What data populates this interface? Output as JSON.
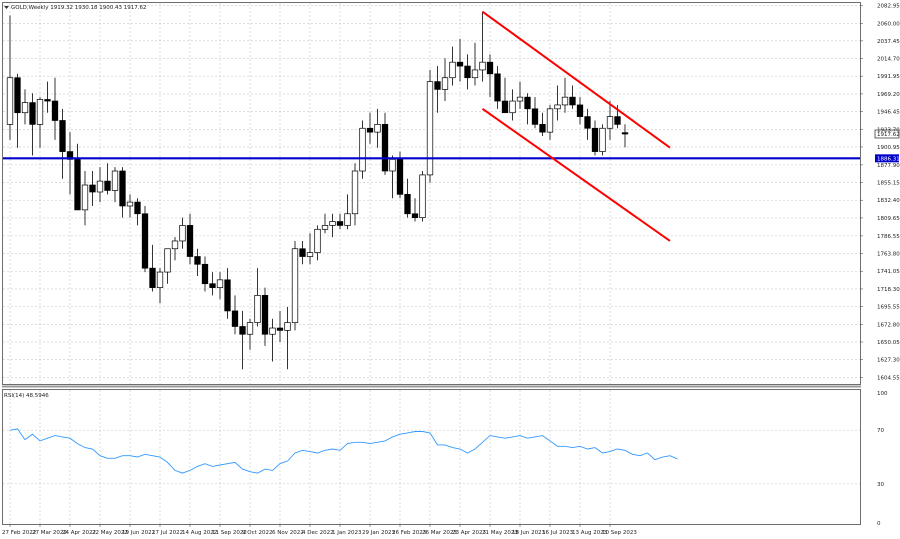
{
  "header": {
    "symbol_line": "GOLD,Weekly  1919.32 1930.18 1900.43 1917.62",
    "rsi_label": "RSI(14) 48.5946"
  },
  "chart_data": [
    {
      "type": "candlestick",
      "symbol": "GOLD",
      "timeframe": "Weekly",
      "ohlc_current": {
        "open": 1919.32,
        "high": 1930.18,
        "low": 1900.43,
        "close": 1917.62
      },
      "ylim": [
        1596,
        2090
      ],
      "y_ticks": [
        "2082.95",
        "2060.00",
        "2037.45",
        "2014.70",
        "1991.95",
        "1969.20",
        "1946.45",
        "1923.70",
        "1900.95",
        "1877.90",
        "1855.15",
        "1832.40",
        "1809.65",
        "1786.55",
        "1763.80",
        "1741.05",
        "1718.30",
        "1695.55",
        "1672.80",
        "1650.05",
        "1627.30",
        "1604.55"
      ],
      "x_labels": [
        "27 Feb 2022",
        "27 Mar 2022",
        "24 Apr 2022",
        "22 May 2022",
        "19 Jun 2022",
        "17 Jul 2022",
        "14 Aug 2022",
        "11 Sep 2022",
        "9 Oct 2022",
        "6 Nov 2022",
        "4 Dec 2022",
        "1 Jan 2023",
        "29 Jan 2023",
        "26 Feb 2023",
        "26 Mar 2023",
        "23 Apr 2023",
        "21 May 2023",
        "18 Jun 2023",
        "16 Jul 2023",
        "13 Aug 2023",
        "10 Sep 2023"
      ],
      "candles": [
        [
          1930,
          2070,
          1910,
          1990
        ],
        [
          1990,
          1995,
          1900,
          1945
        ],
        [
          1945,
          1975,
          1930,
          1958
        ],
        [
          1958,
          1970,
          1890,
          1930
        ],
        [
          1930,
          1965,
          1900,
          1962
        ],
        [
          1962,
          1985,
          1945,
          1960
        ],
        [
          1960,
          1990,
          1910,
          1935
        ],
        [
          1935,
          1950,
          1860,
          1895
        ],
        [
          1895,
          1920,
          1840,
          1885
        ],
        [
          1885,
          1905,
          1820,
          1820
        ],
        [
          1820,
          1870,
          1800,
          1852
        ],
        [
          1852,
          1870,
          1825,
          1843
        ],
        [
          1843,
          1875,
          1830,
          1857
        ],
        [
          1857,
          1880,
          1840,
          1845
        ],
        [
          1845,
          1875,
          1830,
          1870
        ],
        [
          1870,
          1875,
          1810,
          1825
        ],
        [
          1825,
          1840,
          1810,
          1830
        ],
        [
          1830,
          1835,
          1800,
          1815
        ],
        [
          1815,
          1825,
          1740,
          1745
        ],
        [
          1745,
          1775,
          1715,
          1720
        ],
        [
          1720,
          1745,
          1700,
          1740
        ],
        [
          1740,
          1770,
          1725,
          1770
        ],
        [
          1770,
          1785,
          1755,
          1780
        ],
        [
          1780,
          1810,
          1770,
          1800
        ],
        [
          1800,
          1815,
          1750,
          1760
        ],
        [
          1760,
          1770,
          1735,
          1750
        ],
        [
          1750,
          1760,
          1715,
          1725
        ],
        [
          1725,
          1740,
          1710,
          1720
        ],
        [
          1720,
          1740,
          1705,
          1730
        ],
        [
          1730,
          1745,
          1680,
          1690
        ],
        [
          1690,
          1710,
          1660,
          1670
        ],
        [
          1670,
          1690,
          1615,
          1660
        ],
        [
          1660,
          1680,
          1640,
          1675
        ],
        [
          1675,
          1745,
          1670,
          1710
        ],
        [
          1710,
          1720,
          1645,
          1660
        ],
        [
          1660,
          1680,
          1625,
          1668
        ],
        [
          1668,
          1690,
          1650,
          1665
        ],
        [
          1665,
          1695,
          1615,
          1675
        ],
        [
          1675,
          1780,
          1665,
          1770
        ],
        [
          1770,
          1780,
          1750,
          1760
        ],
        [
          1760,
          1790,
          1750,
          1765
        ],
        [
          1765,
          1800,
          1755,
          1795
        ],
        [
          1795,
          1815,
          1790,
          1800
        ],
        [
          1800,
          1815,
          1785,
          1805
        ],
        [
          1805,
          1815,
          1795,
          1800
        ],
        [
          1800,
          1840,
          1795,
          1815
        ],
        [
          1815,
          1880,
          1800,
          1870
        ],
        [
          1870,
          1935,
          1860,
          1925
        ],
        [
          1925,
          1945,
          1905,
          1920
        ],
        [
          1920,
          1950,
          1900,
          1930
        ],
        [
          1930,
          1945,
          1865,
          1870
        ],
        [
          1870,
          1890,
          1835,
          1885
        ],
        [
          1885,
          1895,
          1835,
          1840
        ],
        [
          1840,
          1860,
          1810,
          1815
        ],
        [
          1815,
          1835,
          1805,
          1810
        ],
        [
          1810,
          1870,
          1805,
          1865
        ],
        [
          1865,
          2000,
          1855,
          1985
        ],
        [
          1985,
          2005,
          1945,
          1975
        ],
        [
          1975,
          2015,
          1960,
          1990
        ],
        [
          1990,
          2030,
          1980,
          2010
        ],
        [
          2010,
          2040,
          1985,
          2005
        ],
        [
          2005,
          2020,
          1975,
          1990
        ],
        [
          1990,
          2035,
          1980,
          2000
        ],
        [
          2000,
          2075,
          1985,
          2010
        ],
        [
          2010,
          2020,
          1965,
          1995
        ],
        [
          1995,
          2005,
          1950,
          1960
        ],
        [
          1960,
          1990,
          1945,
          1945
        ],
        [
          1945,
          1975,
          1935,
          1960
        ],
        [
          1960,
          1985,
          1950,
          1965
        ],
        [
          1965,
          1970,
          1930,
          1950
        ],
        [
          1950,
          1965,
          1925,
          1930
        ],
        [
          1930,
          1945,
          1915,
          1920
        ],
        [
          1920,
          1955,
          1910,
          1950
        ],
        [
          1950,
          1980,
          1935,
          1955
        ],
        [
          1955,
          1990,
          1945,
          1965
        ],
        [
          1965,
          1980,
          1950,
          1955
        ],
        [
          1955,
          1965,
          1930,
          1940
        ],
        [
          1940,
          1950,
          1910,
          1925
        ],
        [
          1925,
          1935,
          1890,
          1895
        ],
        [
          1895,
          1930,
          1890,
          1925
        ],
        [
          1925,
          1960,
          1910,
          1940
        ],
        [
          1940,
          1955,
          1925,
          1930
        ],
        [
          1919.32,
          1930.18,
          1900.43,
          1917.62
        ]
      ],
      "support_level": {
        "value": 1886.31,
        "label": "1886.31",
        "color": "#0000cc"
      },
      "channel_color": "#ff0000",
      "channel_upper": {
        "from": {
          "i": 63,
          "y": 2075
        },
        "to": {
          "i": 88,
          "y": 1900
        }
      },
      "channel_lower": {
        "from": {
          "i": 63,
          "y": 1950
        },
        "to": {
          "i": 88,
          "y": 1780
        }
      },
      "current_price_label": "1917.62"
    },
    {
      "type": "line",
      "name": "RSI(14)",
      "value_current": 48.5946,
      "ylim": [
        0,
        100
      ],
      "y_ticks": [
        "100",
        "70",
        "30",
        "0"
      ],
      "line_color": "#3399ff",
      "values": [
        70,
        71,
        63,
        67,
        62,
        64,
        66,
        65,
        64,
        60,
        57,
        56,
        51,
        49,
        49,
        51,
        51,
        50,
        52,
        51,
        50,
        46,
        40,
        38,
        40,
        43,
        45,
        43,
        44,
        45,
        46,
        41,
        39,
        38,
        41,
        40,
        45,
        47,
        53,
        55,
        54,
        53,
        55,
        56,
        55,
        60,
        61,
        61,
        60,
        61,
        62,
        65,
        67,
        68,
        69,
        69,
        68,
        59,
        59,
        57,
        56,
        53,
        56,
        61,
        66,
        65,
        64,
        65,
        66,
        64,
        65,
        66,
        62,
        58,
        58,
        57,
        58,
        56,
        57,
        53,
        54,
        56,
        55,
        52,
        51,
        53,
        48,
        50,
        51,
        48.5946
      ]
    }
  ]
}
